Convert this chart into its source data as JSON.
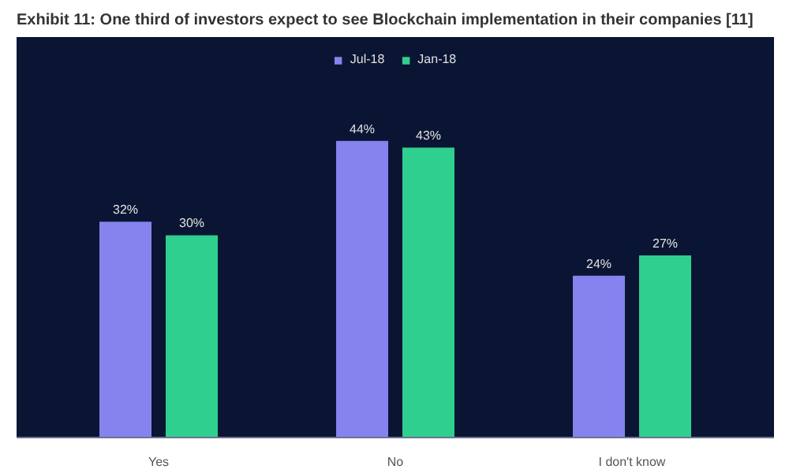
{
  "chart_data": {
    "type": "bar",
    "title": "Exhibit 11: One third of investors expect to see Blockchain implementation in their companies [11]",
    "categories": [
      "Yes",
      "No",
      "I don't know"
    ],
    "series": [
      {
        "name": "Jul-18",
        "color": "#8583ee",
        "values": [
          32,
          44,
          24
        ],
        "value_labels": [
          "32%",
          "44%",
          "24%"
        ]
      },
      {
        "name": "Jan-18",
        "color": "#2fcf8f",
        "values": [
          30,
          43,
          27
        ],
        "value_labels": [
          "30%",
          "43%",
          "27%"
        ]
      }
    ],
    "legend": "top",
    "grid": false
  }
}
